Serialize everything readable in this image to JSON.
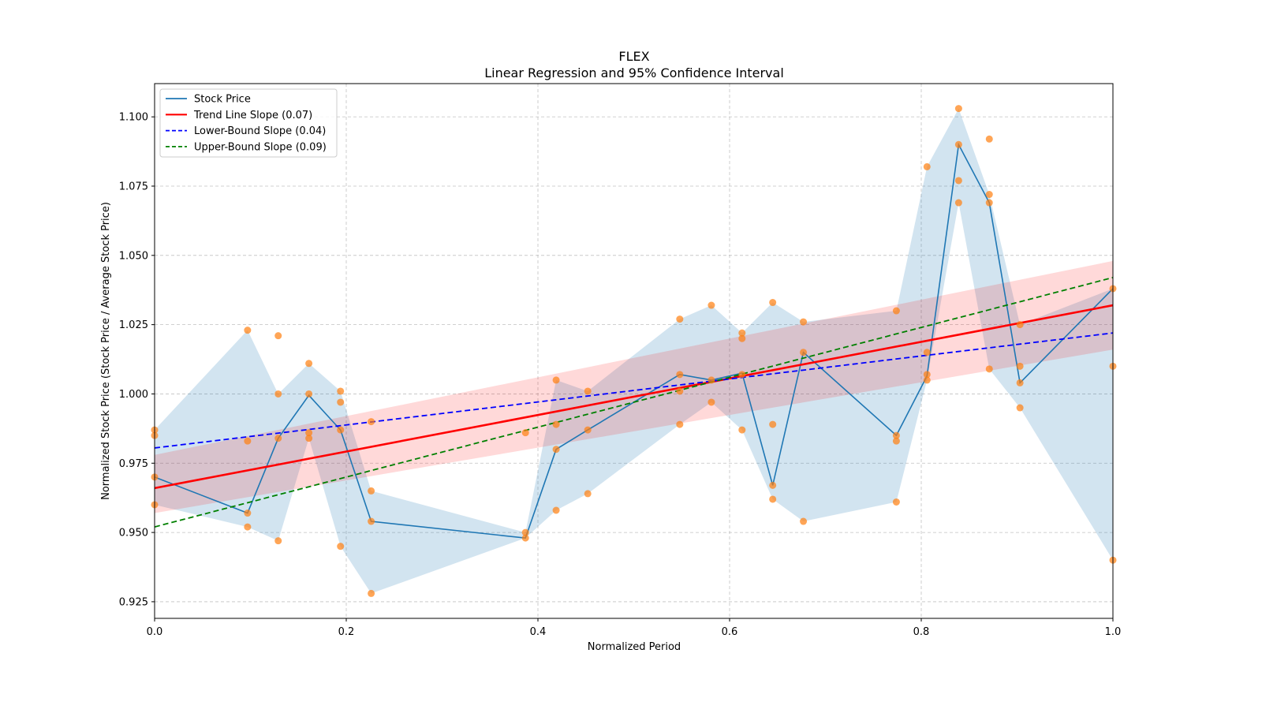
{
  "chart_data": {
    "type": "line",
    "title": "FLEX",
    "subtitle": "Linear Regression and 95% Confidence Interval",
    "xlabel": "Normalized Period",
    "ylabel": "Normalized Stock Price (Stock Price / Average Stock Price)",
    "xlim": [
      0.0,
      1.0
    ],
    "ylim": [
      0.919,
      1.112
    ],
    "xticks": [
      0.0,
      0.2,
      0.4,
      0.6,
      0.8,
      1.0
    ],
    "xtick_labels": [
      "0.0",
      "0.2",
      "0.4",
      "0.6",
      "0.8",
      "1.0"
    ],
    "yticks": [
      0.925,
      0.95,
      0.975,
      1.0,
      1.025,
      1.05,
      1.075,
      1.1
    ],
    "ytick_labels": [
      "0.925",
      "0.950",
      "0.975",
      "1.000",
      "1.025",
      "1.050",
      "1.075",
      "1.100"
    ],
    "grid": true,
    "legend_position": "top-left",
    "legend": [
      {
        "label": "Stock Price",
        "color": "#1f77b4",
        "style": "solid"
      },
      {
        "label": "Trend Line Slope (0.07)",
        "color": "#ff0000",
        "style": "solid"
      },
      {
        "label": "Lower-Bound Slope (0.04)",
        "color": "#0000ff",
        "style": "dashed"
      },
      {
        "label": "Upper-Bound Slope (0.09)",
        "color": "#008000",
        "style": "dashed"
      }
    ],
    "colors": {
      "stock_line": "#1f77b4",
      "stock_band": "#1f77b4",
      "scatter": "#ff7f0e",
      "trend": "#ff0000",
      "trend_band": "#ff0000",
      "lower": "#0000ff",
      "upper": "#008000"
    },
    "x": [
      0.0,
      0.097,
      0.129,
      0.161,
      0.194,
      0.226,
      0.387,
      0.419,
      0.452,
      0.548,
      0.581,
      0.613,
      0.645,
      0.677,
      0.774,
      0.806,
      0.839,
      0.871,
      0.903,
      1.0
    ],
    "series": [
      {
        "name": "Stock Price",
        "values": [
          0.97,
          0.957,
          0.984,
          0.9995,
          0.987,
          0.954,
          0.948,
          0.98,
          0.987,
          1.007,
          1.005,
          1.0075,
          0.967,
          1.015,
          0.985,
          1.0065,
          1.09,
          1.069,
          1.004,
          1.038
        ]
      }
    ],
    "stock_band": {
      "lower": [
        0.96,
        0.952,
        0.947,
        0.984,
        0.945,
        0.928,
        0.948,
        0.958,
        0.964,
        0.989,
        0.997,
        0.987,
        0.962,
        0.954,
        0.961,
        1.005,
        1.069,
        1.009,
        0.995,
        0.94
      ],
      "upper": [
        0.987,
        1.023,
        1.0,
        1.011,
        1.001,
        0.965,
        0.95,
        1.005,
        1.001,
        1.027,
        1.032,
        1.022,
        1.033,
        1.026,
        1.03,
        1.082,
        1.103,
        1.072,
        1.025,
        1.038
      ]
    },
    "scatter": [
      {
        "x": 0.0,
        "y": [
          0.987,
          0.985,
          0.97,
          0.96
        ]
      },
      {
        "x": 0.097,
        "y": [
          1.023,
          0.983,
          0.957,
          0.952
        ]
      },
      {
        "x": 0.129,
        "y": [
          1.021,
          1.0,
          0.984,
          0.947
        ]
      },
      {
        "x": 0.161,
        "y": [
          1.011,
          1.0,
          0.986,
          0.984
        ]
      },
      {
        "x": 0.194,
        "y": [
          1.001,
          0.997,
          0.987,
          0.945
        ]
      },
      {
        "x": 0.226,
        "y": [
          0.99,
          0.965,
          0.954,
          0.928
        ]
      },
      {
        "x": 0.387,
        "y": [
          0.986,
          0.95,
          0.948
        ]
      },
      {
        "x": 0.419,
        "y": [
          1.005,
          0.989,
          0.98,
          0.958
        ]
      },
      {
        "x": 0.452,
        "y": [
          1.001,
          0.987,
          0.964
        ]
      },
      {
        "x": 0.548,
        "y": [
          1.027,
          1.007,
          1.001,
          0.989
        ]
      },
      {
        "x": 0.581,
        "y": [
          1.032,
          1.005,
          0.997
        ]
      },
      {
        "x": 0.613,
        "y": [
          1.022,
          1.02,
          1.007,
          0.987
        ]
      },
      {
        "x": 0.645,
        "y": [
          1.033,
          0.989,
          0.967,
          0.962
        ]
      },
      {
        "x": 0.677,
        "y": [
          1.026,
          1.015,
          0.954
        ]
      },
      {
        "x": 0.774,
        "y": [
          1.03,
          0.985,
          0.983,
          0.961
        ]
      },
      {
        "x": 0.806,
        "y": [
          1.082,
          1.015,
          1.007,
          1.005
        ]
      },
      {
        "x": 0.839,
        "y": [
          1.103,
          1.09,
          1.077,
          1.069
        ]
      },
      {
        "x": 0.871,
        "y": [
          1.092,
          1.072,
          1.069,
          1.009
        ]
      },
      {
        "x": 0.903,
        "y": [
          1.025,
          1.01,
          1.004,
          0.995
        ]
      },
      {
        "x": 1.0,
        "y": [
          1.038,
          1.01,
          0.94
        ]
      }
    ],
    "trend_line": {
      "x": [
        0.0,
        1.0
      ],
      "y": [
        0.966,
        1.032
      ],
      "slope": 0.07
    },
    "trend_band": {
      "x": [
        0.0,
        1.0
      ],
      "lower": [
        0.957,
        1.016
      ],
      "upper": [
        0.978,
        1.048
      ]
    },
    "lower_bound_line": {
      "x": [
        0.0,
        1.0
      ],
      "y": [
        0.9805,
        1.022
      ],
      "slope": 0.04
    },
    "upper_bound_line": {
      "x": [
        0.0,
        1.0
      ],
      "y": [
        0.952,
        1.042
      ],
      "slope": 0.09
    }
  }
}
